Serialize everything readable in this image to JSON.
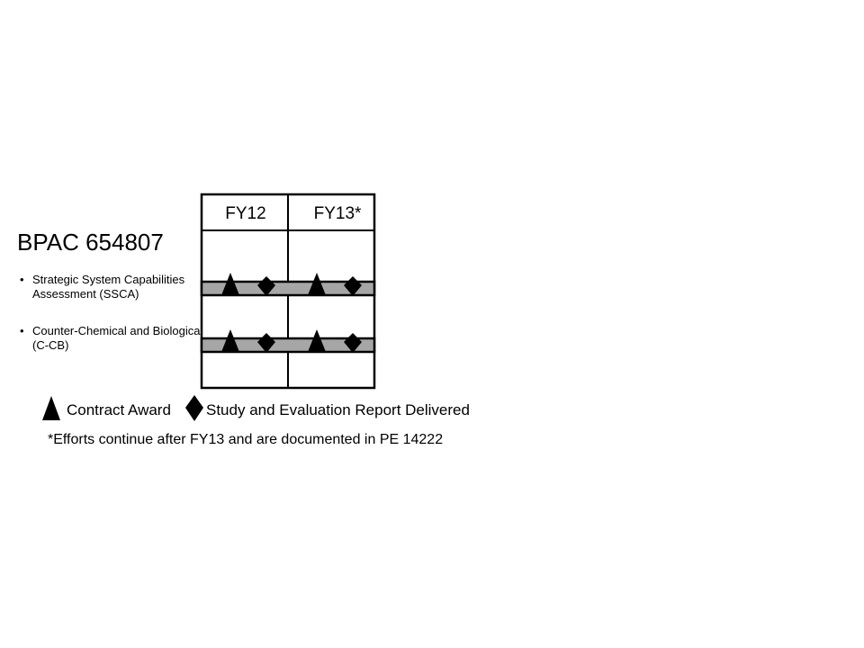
{
  "title": "BPAC 654807",
  "programs": [
    {
      "bullet": "•",
      "label": "Strategic System Capabilities Assessment (SSCA)"
    },
    {
      "bullet": "•",
      "label": "Counter-Chemical and Biological (C-CB)"
    }
  ],
  "schedule": {
    "columns": [
      "FY12",
      "FY13*"
    ],
    "band_color": "#a6a6a6",
    "milestones": [
      {
        "row": 0,
        "fy": "FY12",
        "type": "contract-award"
      },
      {
        "row": 0,
        "fy": "FY12",
        "type": "report-delivered"
      },
      {
        "row": 0,
        "fy": "FY13*",
        "type": "contract-award"
      },
      {
        "row": 0,
        "fy": "FY13*",
        "type": "report-delivered"
      },
      {
        "row": 1,
        "fy": "FY12",
        "type": "contract-award"
      },
      {
        "row": 1,
        "fy": "FY12",
        "type": "report-delivered"
      },
      {
        "row": 1,
        "fy": "FY13*",
        "type": "contract-award"
      },
      {
        "row": 1,
        "fy": "FY13*",
        "type": "report-delivered"
      }
    ]
  },
  "legend": {
    "contract_award": "Contract Award",
    "report_delivered": "Study and Evaluation Report Delivered",
    "contract_award_icon": "triangle-icon",
    "report_delivered_icon": "diamond-icon"
  },
  "footnote": "*Efforts continue after FY13 and are documented in PE 14222"
}
